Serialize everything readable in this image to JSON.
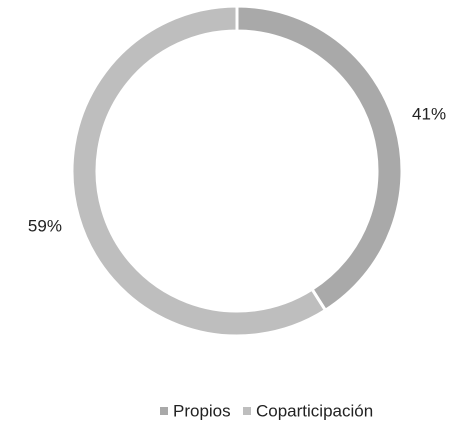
{
  "chart_data": {
    "type": "donut",
    "categories": [
      "Propios",
      "Coparticipación"
    ],
    "values": [
      41,
      59
    ],
    "value_labels": [
      "41%",
      "59%"
    ],
    "colors": [
      "#a9a9a9",
      "#bebebe"
    ],
    "legend": "bottom"
  }
}
